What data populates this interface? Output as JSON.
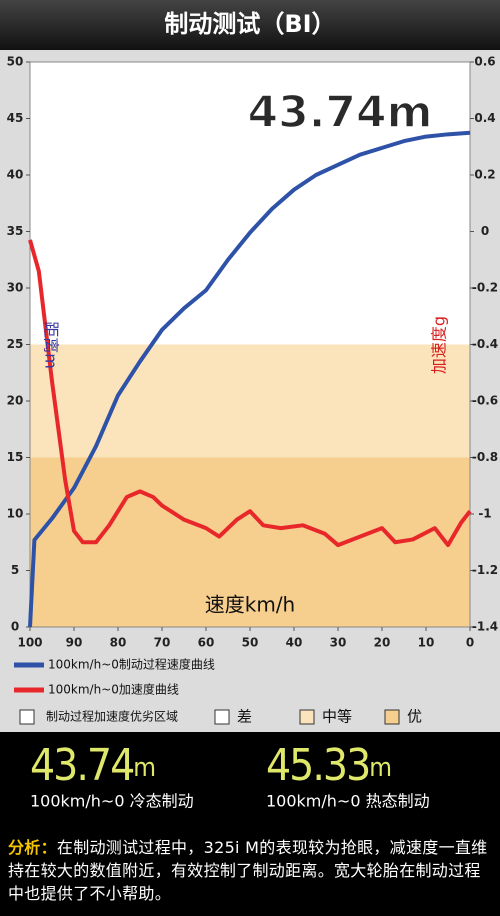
{
  "chart_data": {
    "type": "line",
    "title": "制动测试（BI）",
    "annotation": "43.74m",
    "x_label": "速度km/h",
    "y_label": "距离m",
    "y2_label": "加速度g",
    "xlim": [
      100,
      0
    ],
    "xticks": [
      100,
      90,
      80,
      70,
      60,
      50,
      40,
      30,
      20,
      10,
      0
    ],
    "ylim": [
      0,
      50
    ],
    "yticks": [
      0,
      5,
      10,
      15,
      20,
      25,
      30,
      35,
      40,
      45,
      50
    ],
    "y2lim": [
      -1.4,
      0.6
    ],
    "y2ticks": [
      -1.4,
      -1.2,
      -1,
      -0.8,
      -0.6,
      -0.4,
      -0.2,
      0,
      0.2,
      0.4,
      0.6
    ],
    "zones_label": "制动过程加速度优劣区域",
    "zones": [
      {
        "name": "差",
        "from": 25,
        "to": 50,
        "color": "#ffffff"
      },
      {
        "name": "中等",
        "from": 15,
        "to": 25,
        "color": "#fbe3bb"
      },
      {
        "name": "优",
        "from": 0,
        "to": 15,
        "color": "#f6cf8e"
      }
    ],
    "series": [
      {
        "name": "100km/h~0制动过程速度曲线",
        "color": "#2e52a8",
        "x": [
          100,
          99,
          95,
          90,
          85,
          80,
          75,
          70,
          65,
          60,
          55,
          50,
          45,
          40,
          35,
          30,
          25,
          20,
          15,
          10,
          5,
          0
        ],
        "values": [
          0,
          7.7,
          9.6,
          12.3,
          16,
          20.5,
          23.5,
          26.3,
          28.2,
          29.8,
          32.5,
          34.9,
          37,
          38.7,
          40,
          40.9,
          41.8,
          42.4,
          43,
          43.4,
          43.6,
          43.74
        ]
      },
      {
        "name": "100km/h~0加速度曲线",
        "color": "#e8272a",
        "axis": "y2",
        "x": [
          100,
          98,
          95,
          92,
          90,
          88,
          85,
          82,
          78,
          75,
          72,
          70,
          65,
          60,
          57,
          53,
          50,
          47,
          43,
          38,
          33,
          30,
          25,
          20,
          17,
          13,
          8,
          5,
          2,
          0
        ],
        "values": [
          -0.03,
          -0.14,
          -0.53,
          -0.88,
          -1.06,
          -1.1,
          -1.1,
          -1.04,
          -0.94,
          -0.92,
          -0.94,
          -0.97,
          -1.02,
          -1.05,
          -1.08,
          -1.02,
          -0.99,
          -1.04,
          -1.05,
          -1.04,
          -1.07,
          -1.11,
          -1.08,
          -1.05,
          -1.1,
          -1.09,
          -1.05,
          -1.11,
          -1.03,
          -0.99
        ]
      }
    ]
  },
  "stats": [
    {
      "value": 43.74,
      "unit": "m",
      "label": "100km/h~0 冷态制动"
    },
    {
      "value": 45.33,
      "unit": "m",
      "label": "100km/h~0 热态制动"
    }
  ],
  "analysis": {
    "label": "分析：",
    "text": "在制动测试过程中，325i M的表现较为抢眼，减速度一直维持在较大的数值附近，有效控制了制动距离。宽大轮胎在制动过程中也提供了不小帮助。"
  }
}
